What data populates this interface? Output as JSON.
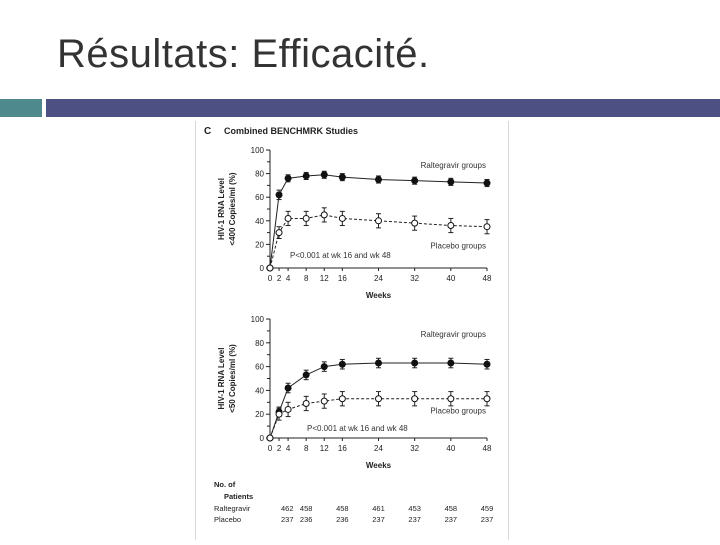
{
  "slide": {
    "title": "Résultats: Efficacité.",
    "accent_colors": {
      "teal": "#4e8a8d",
      "navy": "#4d5083"
    }
  },
  "figure": {
    "panel_letter": "C",
    "panel_title": "Combined BENCHMRK Studies",
    "patients_header_line1": "No. of",
    "patients_header_line2": "Patients",
    "patients": [
      {
        "name": "Raltegravir",
        "values": [
          462,
          458,
          458,
          461,
          453,
          458,
          459
        ]
      },
      {
        "name": "Placebo",
        "values": [
          237,
          236,
          236,
          237,
          237,
          237,
          237
        ]
      }
    ]
  },
  "chart_data": [
    {
      "type": "line",
      "ylabel_line1": "HIV-1 RNA Level",
      "ylabel_line2": "<400 Copies/ml (%)",
      "xlabel": "Weeks",
      "x_ticks": [
        0,
        2,
        4,
        8,
        12,
        16,
        24,
        32,
        40,
        48
      ],
      "y_ticks": [
        0,
        20,
        40,
        60,
        80,
        100
      ],
      "xlim": [
        0,
        48
      ],
      "ylim": [
        0,
        100
      ],
      "annotation": "P<0.001 at wk 16 and wk 48",
      "series": [
        {
          "name": "Raltegravir groups",
          "marker": "filled-circle",
          "line": "solid",
          "x": [
            0,
            2,
            4,
            8,
            12,
            16,
            24,
            32,
            40,
            48
          ],
          "y": [
            0,
            62,
            76,
            78,
            79,
            77,
            75,
            74,
            73,
            72
          ],
          "err": [
            0,
            4,
            3,
            3,
            3,
            3,
            3,
            3,
            3,
            3
          ]
        },
        {
          "name": "Placebo groups",
          "marker": "open-circle",
          "line": "dashed",
          "x": [
            0,
            2,
            4,
            8,
            12,
            16,
            24,
            32,
            40,
            48
          ],
          "y": [
            0,
            30,
            42,
            42,
            45,
            42,
            40,
            38,
            36,
            35
          ],
          "err": [
            0,
            5,
            6,
            6,
            6,
            6,
            6,
            6,
            6,
            6
          ]
        }
      ]
    },
    {
      "type": "line",
      "ylabel_line1": "HIV-1 RNA Level",
      "ylabel_line2": "<50 Copies/ml (%)",
      "xlabel": "Weeks",
      "x_ticks": [
        0,
        2,
        4,
        8,
        12,
        16,
        24,
        32,
        40,
        48
      ],
      "y_ticks": [
        0,
        20,
        40,
        60,
        80,
        100
      ],
      "xlim": [
        0,
        48
      ],
      "ylim": [
        0,
        100
      ],
      "annotation": "P<0.001 at wk 16 and wk 48",
      "series": [
        {
          "name": "Raltegravir groups",
          "marker": "filled-circle",
          "line": "solid",
          "x": [
            0,
            2,
            4,
            8,
            12,
            16,
            24,
            32,
            40,
            48
          ],
          "y": [
            0,
            22,
            42,
            53,
            60,
            62,
            63,
            63,
            63,
            62
          ],
          "err": [
            0,
            4,
            4,
            4,
            4,
            4,
            4,
            4,
            4,
            4
          ]
        },
        {
          "name": "Placebo groups",
          "marker": "open-circle",
          "line": "dashed",
          "x": [
            0,
            2,
            4,
            8,
            12,
            16,
            24,
            32,
            40,
            48
          ],
          "y": [
            0,
            20,
            24,
            29,
            31,
            33,
            33,
            33,
            33,
            33
          ],
          "err": [
            0,
            5,
            6,
            6,
            6,
            6,
            6,
            6,
            6,
            6
          ]
        }
      ]
    }
  ]
}
